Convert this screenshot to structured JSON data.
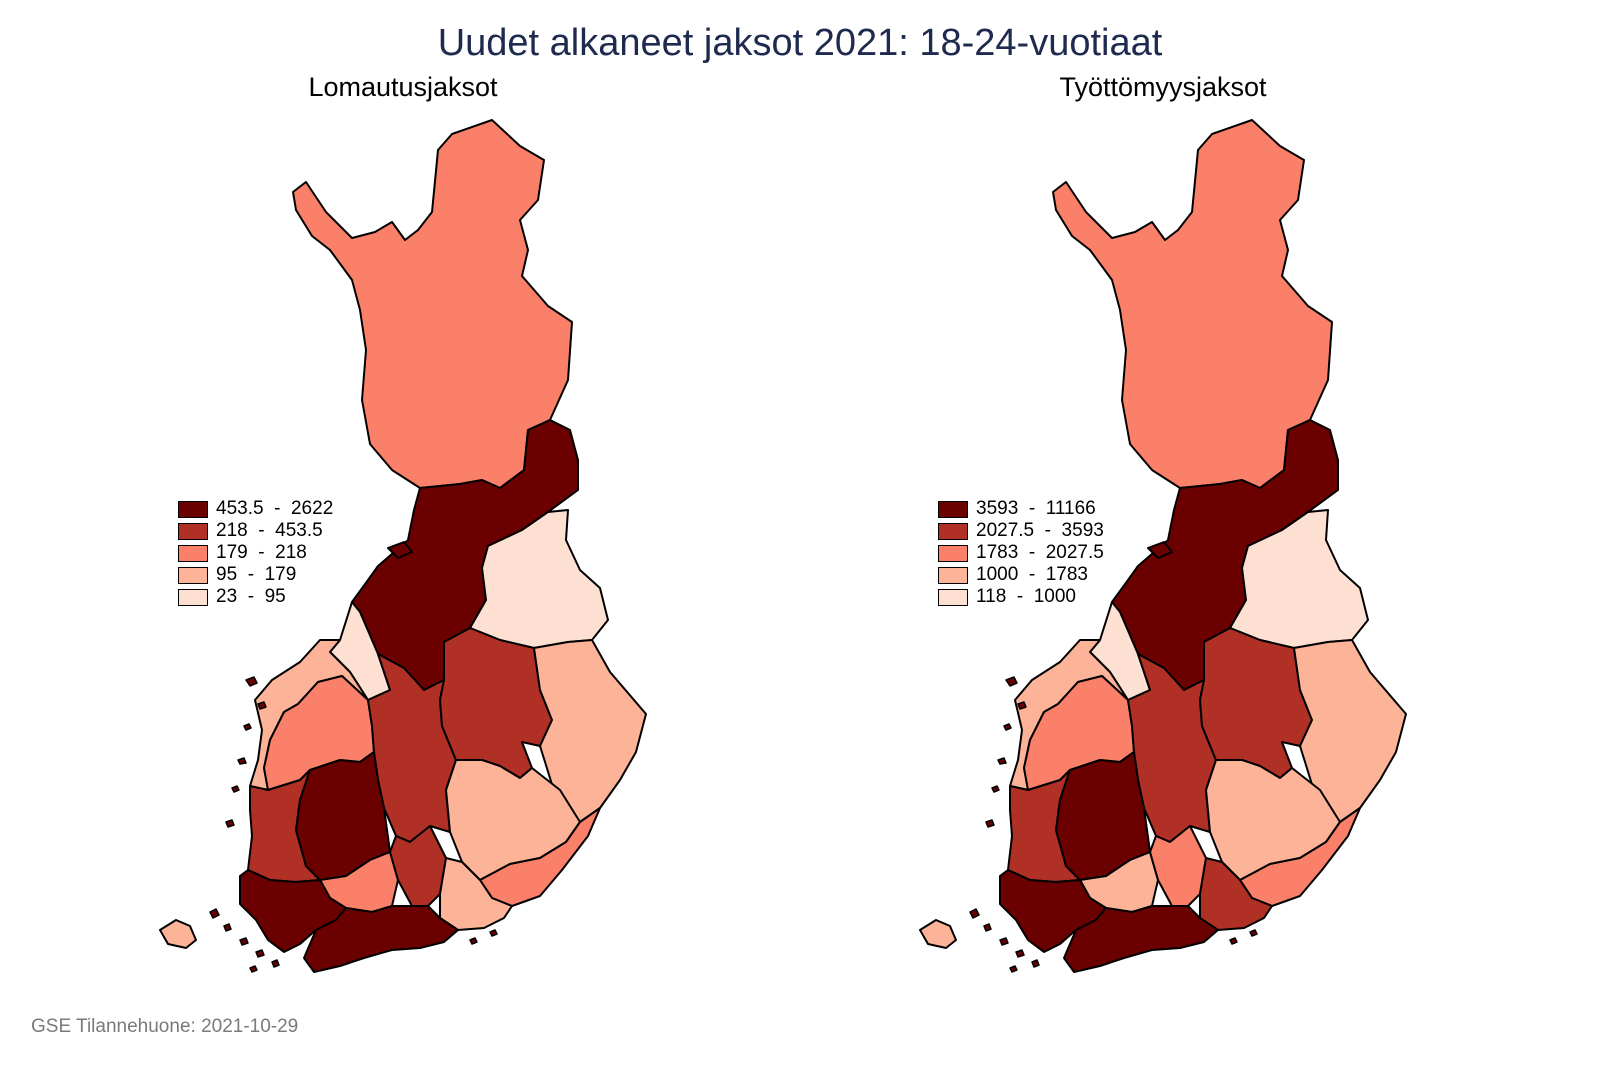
{
  "title": "Uudet alkaneet jaksot 2021: 18-24-vuotiaat",
  "footer": "GSE Tilannehuone: 2021-10-29",
  "colors": {
    "c5": "#6b0000",
    "c4": "#b03025",
    "c3": "#fb806a",
    "c2": "#fcb398",
    "c1": "#fde0d2"
  },
  "panels": [
    {
      "title": "Lomautusjaksot",
      "legend": [
        {
          "range": "453.5  -  2622",
          "cls": "c5"
        },
        {
          "range": "218  -  453.5",
          "cls": "c4"
        },
        {
          "range": "179  -  218",
          "cls": "c3"
        },
        {
          "range": "95  -  179",
          "cls": "c2"
        },
        {
          "range": "23  -  95",
          "cls": "c1"
        }
      ],
      "regions": {
        "lappi": "c3",
        "kainuu_pohjois": "c5",
        "pohjois_karjala": "c1",
        "keski_pohjanmaa": "c1",
        "pohjanmaa": "c2",
        "etela_pohjanmaa": "c3",
        "keski_suomi": "c4",
        "pohjois_savo": "c4",
        "etela_savo_karjala": "c2",
        "satakunta": "c4",
        "pirkanmaa": "c5",
        "kanta_hame": "c3",
        "paijat_hame": "c4",
        "kymenlaakso": "c2",
        "etela_karjala": "c3",
        "varsinais_suomi": "c5",
        "uusimaa": "c5",
        "ahvenanmaa": "c2",
        "kainuu_north": "c5",
        "etela_savo": "c2"
      }
    },
    {
      "title": "Työttömyysjaksot",
      "legend": [
        {
          "range": "3593  -  11166",
          "cls": "c5"
        },
        {
          "range": "2027.5  -  3593",
          "cls": "c4"
        },
        {
          "range": "1783  -  2027.5",
          "cls": "c3"
        },
        {
          "range": "1000  -  1783",
          "cls": "c2"
        },
        {
          "range": "118  -  1000",
          "cls": "c1"
        }
      ],
      "regions": {
        "lappi": "c3",
        "kainuu_pohjois": "c5",
        "pohjois_karjala": "c1",
        "keski_pohjanmaa": "c1",
        "pohjanmaa": "c2",
        "etela_pohjanmaa": "c3",
        "keski_suomi": "c4",
        "pohjois_savo": "c4",
        "etela_savo_karjala": "c2",
        "satakunta": "c4",
        "pirkanmaa": "c5",
        "kanta_hame": "c2",
        "paijat_hame": "c3",
        "kymenlaakso": "c4",
        "etela_karjala": "c3",
        "varsinais_suomi": "c5",
        "uusimaa": "c5",
        "ahvenanmaa": "c2",
        "kainuu_north": "c5",
        "etela_savo": "c2"
      }
    }
  ]
}
